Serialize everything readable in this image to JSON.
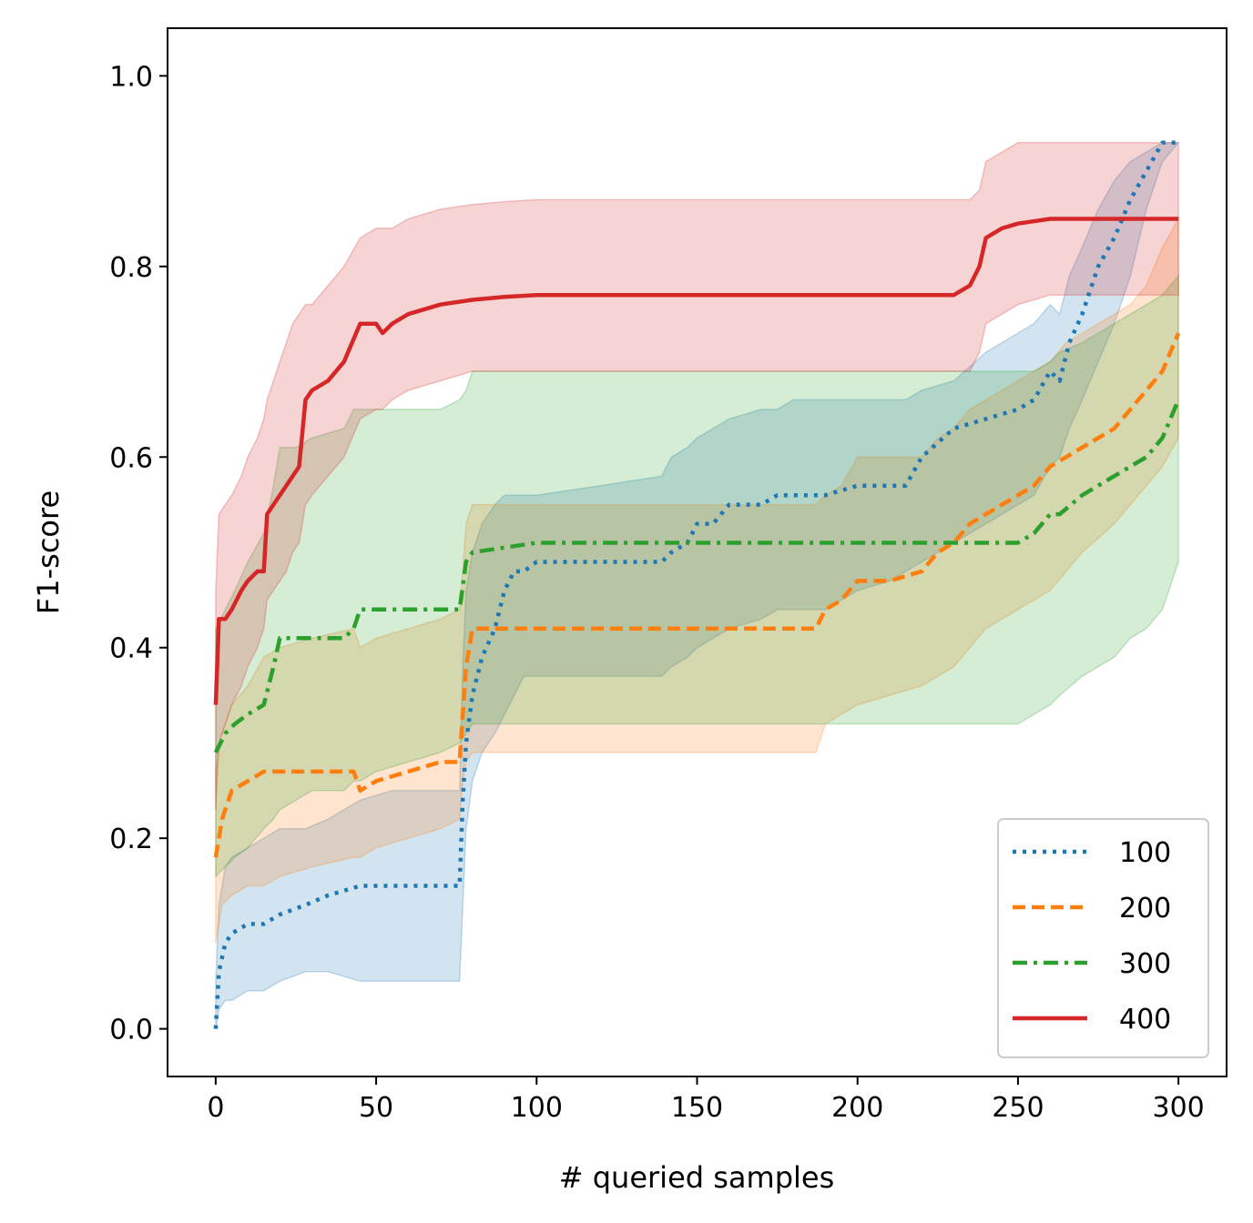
{
  "chart_data": {
    "type": "line",
    "xlabel": "# queried samples",
    "ylabel": "F1-score",
    "xlim": [
      -15,
      315
    ],
    "ylim": [
      -0.05,
      1.05
    ],
    "xticks": [
      0,
      50,
      100,
      150,
      200,
      250,
      300
    ],
    "xtick_labels": [
      "0",
      "50",
      "100",
      "150",
      "200",
      "250",
      "300"
    ],
    "yticks": [
      0.0,
      0.2,
      0.4,
      0.6,
      0.8,
      1.0
    ],
    "ytick_labels": [
      "0.0",
      "0.2",
      "0.4",
      "0.6",
      "0.8",
      "1.0"
    ],
    "grid": false,
    "legend_position": "bottom-right",
    "series": [
      {
        "name": "100",
        "color": "#1f77b4",
        "linestyle": "dotted",
        "x": [
          0,
          1,
          3,
          5,
          10,
          15,
          20,
          28,
          35,
          45,
          55,
          76,
          77,
          78,
          80,
          83,
          87,
          90,
          93,
          96,
          100,
          120,
          139,
          142,
          147,
          150,
          155,
          160,
          170,
          175,
          180,
          190,
          200,
          210,
          215,
          220,
          230,
          240,
          250,
          255,
          260,
          263,
          266,
          270,
          275,
          280,
          285,
          290,
          295,
          300
        ],
        "y": [
          0.0,
          0.06,
          0.09,
          0.1,
          0.11,
          0.11,
          0.12,
          0.13,
          0.14,
          0.15,
          0.15,
          0.15,
          0.24,
          0.3,
          0.35,
          0.39,
          0.42,
          0.46,
          0.48,
          0.48,
          0.49,
          0.49,
          0.49,
          0.5,
          0.51,
          0.53,
          0.53,
          0.55,
          0.55,
          0.56,
          0.56,
          0.56,
          0.57,
          0.57,
          0.57,
          0.6,
          0.63,
          0.64,
          0.65,
          0.66,
          0.69,
          0.68,
          0.72,
          0.75,
          0.8,
          0.83,
          0.87,
          0.9,
          0.93,
          0.93
        ],
        "band_lower": [
          0.0,
          0.02,
          0.03,
          0.03,
          0.04,
          0.04,
          0.05,
          0.06,
          0.06,
          0.05,
          0.05,
          0.05,
          0.13,
          0.21,
          0.26,
          0.29,
          0.31,
          0.33,
          0.35,
          0.37,
          0.37,
          0.37,
          0.37,
          0.38,
          0.39,
          0.4,
          0.41,
          0.42,
          0.43,
          0.44,
          0.44,
          0.44,
          0.46,
          0.47,
          0.48,
          0.49,
          0.51,
          0.53,
          0.55,
          0.56,
          0.59,
          0.6,
          0.63,
          0.66,
          0.7,
          0.74,
          0.79,
          0.86,
          0.91,
          0.93
        ],
        "band_upper": [
          0.05,
          0.13,
          0.17,
          0.18,
          0.19,
          0.2,
          0.21,
          0.21,
          0.22,
          0.24,
          0.25,
          0.25,
          0.38,
          0.46,
          0.5,
          0.53,
          0.55,
          0.56,
          0.56,
          0.56,
          0.56,
          0.57,
          0.58,
          0.6,
          0.61,
          0.62,
          0.63,
          0.64,
          0.65,
          0.65,
          0.66,
          0.66,
          0.66,
          0.66,
          0.66,
          0.67,
          0.68,
          0.71,
          0.73,
          0.74,
          0.76,
          0.75,
          0.79,
          0.82,
          0.86,
          0.89,
          0.91,
          0.92,
          0.93,
          0.93
        ]
      },
      {
        "name": "200",
        "color": "#ff7f0e",
        "linestyle": "dashed",
        "x": [
          0,
          2,
          5,
          10,
          15,
          20,
          30,
          43,
          45,
          50,
          60,
          70,
          76,
          77,
          78,
          80,
          90,
          100,
          120,
          150,
          180,
          187,
          190,
          195,
          200,
          210,
          220,
          225,
          230,
          235,
          240,
          245,
          250,
          255,
          260,
          265,
          270,
          280,
          285,
          290,
          295,
          300
        ],
        "y": [
          0.18,
          0.22,
          0.25,
          0.26,
          0.27,
          0.27,
          0.27,
          0.27,
          0.25,
          0.26,
          0.27,
          0.28,
          0.28,
          0.33,
          0.38,
          0.42,
          0.42,
          0.42,
          0.42,
          0.42,
          0.42,
          0.42,
          0.44,
          0.45,
          0.47,
          0.47,
          0.48,
          0.5,
          0.51,
          0.53,
          0.54,
          0.55,
          0.56,
          0.57,
          0.59,
          0.6,
          0.61,
          0.63,
          0.65,
          0.67,
          0.69,
          0.73
        ],
        "band_lower": [
          0.09,
          0.13,
          0.14,
          0.15,
          0.15,
          0.16,
          0.17,
          0.18,
          0.18,
          0.19,
          0.2,
          0.21,
          0.22,
          0.26,
          0.28,
          0.29,
          0.29,
          0.29,
          0.29,
          0.29,
          0.29,
          0.29,
          0.32,
          0.33,
          0.34,
          0.35,
          0.36,
          0.37,
          0.38,
          0.4,
          0.42,
          0.43,
          0.44,
          0.45,
          0.46,
          0.48,
          0.5,
          0.53,
          0.55,
          0.57,
          0.59,
          0.62
        ],
        "band_upper": [
          0.27,
          0.31,
          0.34,
          0.36,
          0.39,
          0.4,
          0.41,
          0.42,
          0.4,
          0.41,
          0.42,
          0.43,
          0.44,
          0.48,
          0.53,
          0.55,
          0.55,
          0.55,
          0.55,
          0.55,
          0.55,
          0.55,
          0.56,
          0.57,
          0.6,
          0.6,
          0.6,
          0.62,
          0.63,
          0.65,
          0.66,
          0.67,
          0.68,
          0.69,
          0.7,
          0.72,
          0.73,
          0.75,
          0.76,
          0.78,
          0.82,
          0.85
        ]
      },
      {
        "name": "300",
        "color": "#2ca02c",
        "linestyle": "dashdot",
        "x": [
          0,
          3,
          6,
          10,
          15,
          18,
          20,
          25,
          30,
          40,
          43,
          45,
          50,
          60,
          70,
          76,
          78,
          80,
          100,
          150,
          200,
          240,
          250,
          255,
          260,
          263,
          270,
          275,
          280,
          285,
          290,
          295,
          300
        ],
        "y": [
          0.29,
          0.31,
          0.32,
          0.33,
          0.34,
          0.38,
          0.41,
          0.41,
          0.41,
          0.41,
          0.42,
          0.44,
          0.44,
          0.44,
          0.44,
          0.44,
          0.49,
          0.5,
          0.51,
          0.51,
          0.51,
          0.51,
          0.51,
          0.52,
          0.54,
          0.54,
          0.56,
          0.57,
          0.58,
          0.59,
          0.6,
          0.62,
          0.66
        ],
        "band_lower": [
          0.16,
          0.17,
          0.18,
          0.19,
          0.21,
          0.22,
          0.23,
          0.24,
          0.25,
          0.25,
          0.26,
          0.26,
          0.27,
          0.28,
          0.29,
          0.3,
          0.31,
          0.32,
          0.32,
          0.32,
          0.32,
          0.32,
          0.32,
          0.33,
          0.34,
          0.35,
          0.37,
          0.38,
          0.39,
          0.41,
          0.42,
          0.44,
          0.49
        ],
        "band_upper": [
          0.42,
          0.44,
          0.46,
          0.49,
          0.52,
          0.57,
          0.61,
          0.61,
          0.62,
          0.63,
          0.65,
          0.65,
          0.65,
          0.65,
          0.65,
          0.66,
          0.67,
          0.69,
          0.69,
          0.69,
          0.69,
          0.69,
          0.69,
          0.69,
          0.7,
          0.71,
          0.72,
          0.73,
          0.74,
          0.75,
          0.76,
          0.77,
          0.79
        ]
      },
      {
        "name": "400",
        "color": "#d62728",
        "linestyle": "solid",
        "x": [
          0,
          1,
          3,
          5,
          8,
          10,
          13,
          15,
          16,
          18,
          20,
          22,
          24,
          26,
          28,
          30,
          35,
          40,
          45,
          50,
          52,
          55,
          60,
          70,
          80,
          90,
          100,
          120,
          150,
          200,
          230,
          235,
          238,
          240,
          245,
          250,
          260,
          270,
          300
        ],
        "y": [
          0.34,
          0.43,
          0.43,
          0.44,
          0.46,
          0.47,
          0.48,
          0.48,
          0.54,
          0.55,
          0.56,
          0.57,
          0.58,
          0.59,
          0.66,
          0.67,
          0.68,
          0.7,
          0.74,
          0.74,
          0.73,
          0.74,
          0.75,
          0.76,
          0.765,
          0.768,
          0.77,
          0.77,
          0.77,
          0.77,
          0.77,
          0.78,
          0.8,
          0.83,
          0.84,
          0.845,
          0.85,
          0.85,
          0.85
        ],
        "band_lower": [
          0.23,
          0.3,
          0.32,
          0.34,
          0.36,
          0.38,
          0.4,
          0.42,
          0.45,
          0.46,
          0.47,
          0.48,
          0.5,
          0.51,
          0.55,
          0.56,
          0.58,
          0.6,
          0.64,
          0.65,
          0.65,
          0.66,
          0.67,
          0.68,
          0.69,
          0.69,
          0.69,
          0.69,
          0.69,
          0.69,
          0.69,
          0.69,
          0.71,
          0.74,
          0.75,
          0.76,
          0.77,
          0.77,
          0.77
        ],
        "band_upper": [
          0.46,
          0.54,
          0.55,
          0.56,
          0.58,
          0.6,
          0.62,
          0.64,
          0.66,
          0.68,
          0.7,
          0.72,
          0.74,
          0.75,
          0.76,
          0.76,
          0.78,
          0.8,
          0.83,
          0.84,
          0.84,
          0.84,
          0.85,
          0.86,
          0.865,
          0.868,
          0.87,
          0.87,
          0.87,
          0.87,
          0.87,
          0.87,
          0.88,
          0.91,
          0.92,
          0.93,
          0.93,
          0.93,
          0.93
        ]
      }
    ]
  }
}
